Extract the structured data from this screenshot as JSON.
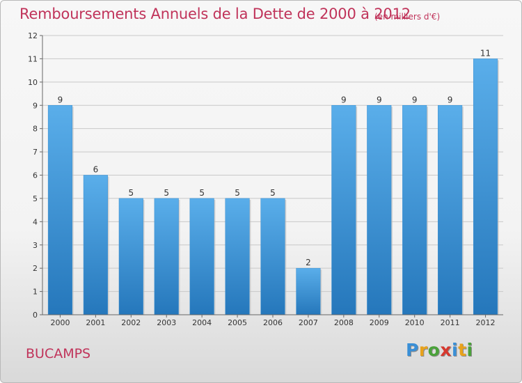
{
  "title": "Remboursements Annuels de la Dette de 2000 à 2012",
  "subtitle": "(en milliers d'€)",
  "commune": "BUCAMPS",
  "logo": {
    "letters": [
      "P",
      "r",
      "o",
      "x",
      "i",
      "t",
      "i"
    ],
    "colors": [
      "#3a8fd6",
      "#e8a21c",
      "#4aa23a",
      "#d6382e",
      "#3a8fd6",
      "#e8a21c",
      "#4aa23a"
    ]
  },
  "colors": {
    "bar": "#4a9fe0",
    "bar_dark": "#2a7bc0",
    "title": "#c0335a",
    "grid": "#c8c8c8"
  },
  "chart_data": {
    "type": "bar",
    "title": "Remboursements Annuels de la Dette de 2000 à 2012",
    "subtitle": "(en milliers d'€)",
    "xlabel": "",
    "ylabel": "",
    "categories": [
      "2000",
      "2001",
      "2002",
      "2003",
      "2004",
      "2005",
      "2006",
      "2007",
      "2008",
      "2009",
      "2010",
      "2011",
      "2012"
    ],
    "values": [
      9,
      6,
      5,
      5,
      5,
      5,
      5,
      2,
      9,
      9,
      9,
      9,
      11
    ],
    "data_labels": [
      "9",
      "6",
      "5",
      "5",
      "5",
      "5",
      "5",
      "2",
      "9",
      "9",
      "9",
      "9",
      "11"
    ],
    "ylim": [
      0,
      12
    ],
    "yticks": [
      "0",
      "1",
      "2",
      "3",
      "4",
      "5",
      "6",
      "7",
      "8",
      "9",
      "10",
      "11",
      "12"
    ],
    "grid": true
  }
}
